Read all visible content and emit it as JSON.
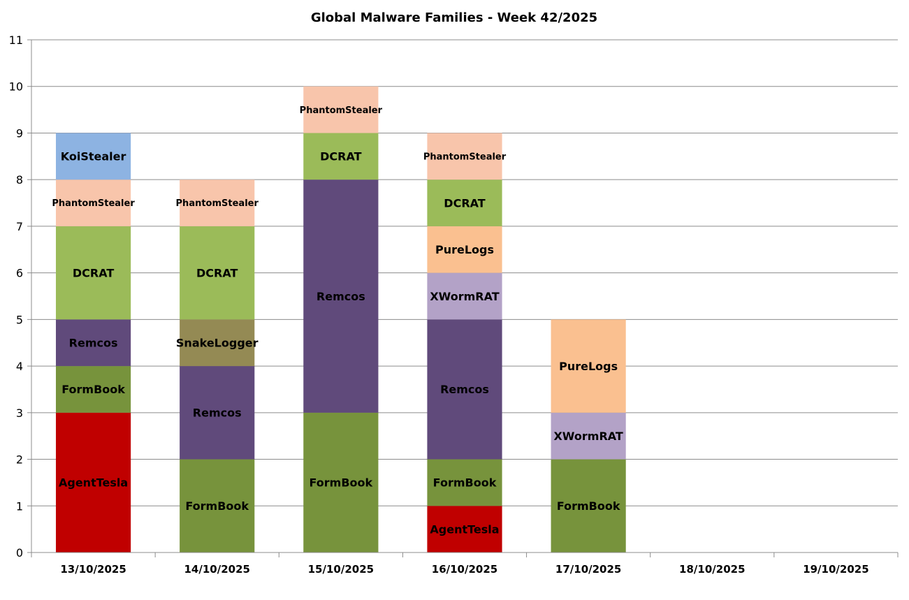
{
  "chart_data": {
    "type": "bar",
    "stacked": true,
    "title": "Global Malware Families - Week 42/2025",
    "xlabel": "",
    "ylabel": "",
    "ylim": [
      0,
      11
    ],
    "yticks": [
      0,
      1,
      2,
      3,
      4,
      5,
      6,
      7,
      8,
      9,
      10,
      11
    ],
    "grid": true,
    "legend": "none",
    "categories": [
      "13/10/2025",
      "14/10/2025",
      "15/10/2025",
      "16/10/2025",
      "17/10/2025",
      "18/10/2025",
      "19/10/2025"
    ],
    "colors": {
      "AgentTesla": "#c00000",
      "FormBook": "#77933c",
      "Remcos": "#604a7b",
      "SnakeLogger": "#948a54",
      "DCRAT": "#9bbb59",
      "XWormRAT": "#b3a2c7",
      "PureLogs": "#fac090",
      "PhantomStealer": "#f8c5ab",
      "KoiStealer": "#8db3e2"
    },
    "stacks": [
      [
        {
          "name": "AgentTesla",
          "value": 3
        },
        {
          "name": "FormBook",
          "value": 1
        },
        {
          "name": "Remcos",
          "value": 1
        },
        {
          "name": "DCRAT",
          "value": 2
        },
        {
          "name": "PhantomStealer",
          "value": 1
        },
        {
          "name": "KoiStealer",
          "value": 1
        }
      ],
      [
        {
          "name": "FormBook",
          "value": 2
        },
        {
          "name": "Remcos",
          "value": 2
        },
        {
          "name": "SnakeLogger",
          "value": 1
        },
        {
          "name": "DCRAT",
          "value": 2
        },
        {
          "name": "PhantomStealer",
          "value": 1
        }
      ],
      [
        {
          "name": "FormBook",
          "value": 3
        },
        {
          "name": "Remcos",
          "value": 5
        },
        {
          "name": "DCRAT",
          "value": 1
        },
        {
          "name": "PhantomStealer",
          "value": 1
        }
      ],
      [
        {
          "name": "AgentTesla",
          "value": 1
        },
        {
          "name": "FormBook",
          "value": 1
        },
        {
          "name": "Remcos",
          "value": 3
        },
        {
          "name": "XWormRAT",
          "value": 1
        },
        {
          "name": "PureLogs",
          "value": 1
        },
        {
          "name": "DCRAT",
          "value": 1
        },
        {
          "name": "PhantomStealer",
          "value": 1
        }
      ],
      [
        {
          "name": "FormBook",
          "value": 2
        },
        {
          "name": "XWormRAT",
          "value": 1
        },
        {
          "name": "PureLogs",
          "value": 2
        }
      ],
      [],
      []
    ]
  }
}
